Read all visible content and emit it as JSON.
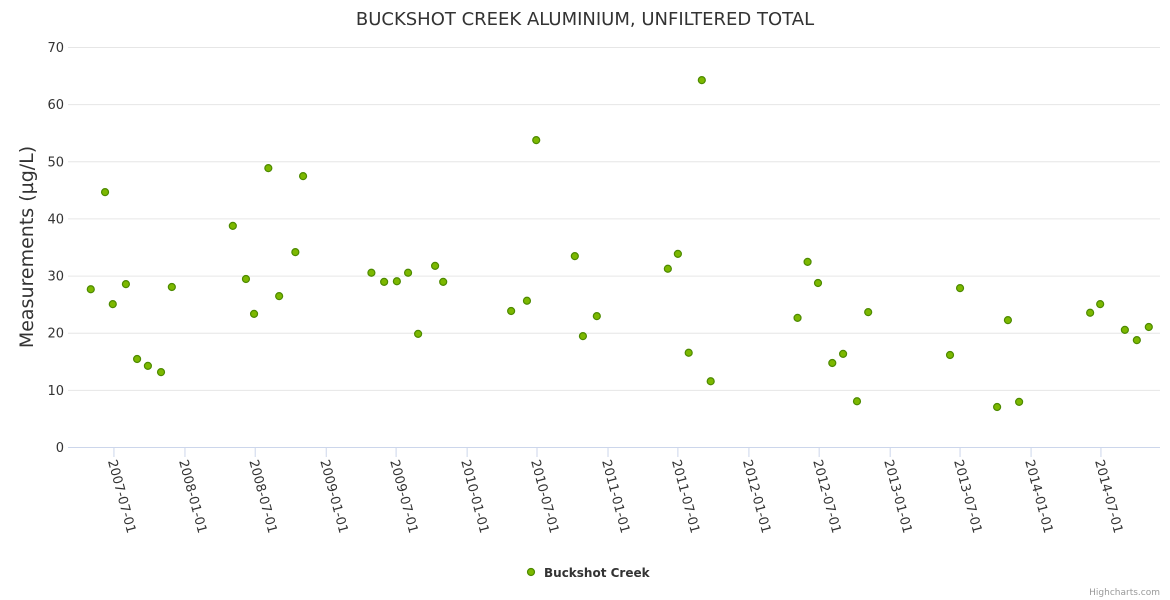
{
  "chart_data": {
    "type": "scatter",
    "title": "BUCKSHOT CREEK ALUMINIUM, UNFILTERED TOTAL",
    "xlabel": "",
    "ylabel": "Measurements (µg/L)",
    "ylim": [
      0,
      70
    ],
    "xlim": [
      "2007-03-04",
      "2014-12-01"
    ],
    "yticks": [
      0,
      10,
      20,
      30,
      40,
      50,
      60,
      70
    ],
    "xticks": [
      "2007-07-01",
      "2008-01-01",
      "2008-07-01",
      "2009-01-01",
      "2009-07-01",
      "2010-01-01",
      "2010-07-01",
      "2011-01-01",
      "2011-07-01",
      "2012-01-01",
      "2012-07-01",
      "2013-01-01",
      "2013-07-01",
      "2014-01-01",
      "2014-07-01"
    ],
    "grid": true,
    "legend_position": "bottom-center",
    "series": [
      {
        "name": "Buckshot Creek",
        "color": "#7cb800",
        "border": "#4d8a00",
        "points": [
          [
            "2007-05-02",
            27.6
          ],
          [
            "2007-06-08",
            44.6
          ],
          [
            "2007-06-28",
            25.0
          ],
          [
            "2007-08-01",
            28.5
          ],
          [
            "2007-08-30",
            15.4
          ],
          [
            "2007-09-27",
            14.2
          ],
          [
            "2007-10-31",
            13.1
          ],
          [
            "2007-11-28",
            28.0
          ],
          [
            "2008-05-04",
            38.7
          ],
          [
            "2008-06-07",
            29.4
          ],
          [
            "2008-06-28",
            23.3
          ],
          [
            "2008-08-04",
            48.8
          ],
          [
            "2008-09-01",
            26.4
          ],
          [
            "2008-10-13",
            34.1
          ],
          [
            "2008-11-02",
            47.4
          ],
          [
            "2009-04-28",
            30.5
          ],
          [
            "2009-05-31",
            28.9
          ],
          [
            "2009-07-03",
            29.0
          ],
          [
            "2009-08-01",
            30.5
          ],
          [
            "2009-08-27",
            19.8
          ],
          [
            "2009-10-10",
            31.7
          ],
          [
            "2009-10-31",
            28.9
          ],
          [
            "2010-04-25",
            23.8
          ],
          [
            "2010-06-05",
            25.6
          ],
          [
            "2010-06-29",
            53.7
          ],
          [
            "2010-10-07",
            33.4
          ],
          [
            "2010-10-28",
            19.4
          ],
          [
            "2010-12-03",
            22.9
          ],
          [
            "2011-06-05",
            31.2
          ],
          [
            "2011-07-01",
            33.8
          ],
          [
            "2011-07-29",
            16.5
          ],
          [
            "2011-09-01",
            64.2
          ],
          [
            "2011-09-24",
            11.5
          ],
          [
            "2012-05-06",
            22.6
          ],
          [
            "2012-06-01",
            32.4
          ],
          [
            "2012-06-28",
            28.7
          ],
          [
            "2012-08-04",
            14.7
          ],
          [
            "2012-09-01",
            16.3
          ],
          [
            "2012-10-07",
            8.0
          ],
          [
            "2012-11-05",
            23.6
          ],
          [
            "2013-06-05",
            16.1
          ],
          [
            "2013-07-01",
            27.8
          ],
          [
            "2013-10-05",
            7.0
          ],
          [
            "2013-11-02",
            22.2
          ],
          [
            "2013-12-01",
            7.9
          ],
          [
            "2014-06-03",
            23.5
          ],
          [
            "2014-06-29",
            25.0
          ],
          [
            "2014-09-01",
            20.5
          ],
          [
            "2014-10-02",
            18.7
          ],
          [
            "2014-11-02",
            21.0
          ]
        ]
      }
    ]
  },
  "credits": "Highcharts.com"
}
